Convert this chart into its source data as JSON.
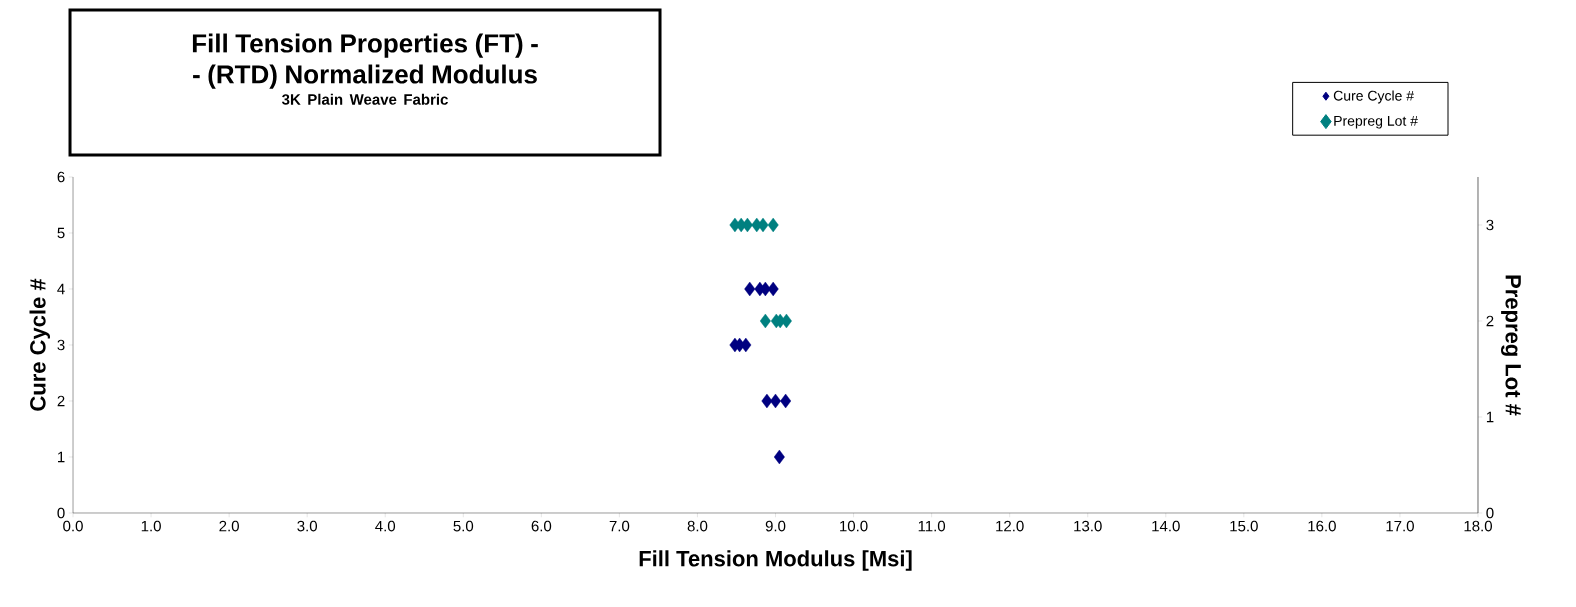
{
  "chart_data": {
    "type": "scatter",
    "title": "Fill Tension Properties (FT) --  (RTD) Normalized Modulus",
    "subtitle": "3K Plain Weave Fabric",
    "xlabel": "Fill Tension  Modulus [Msi]",
    "ylabel": "Cure Cycle #",
    "y2label": "Prepreg Lot #",
    "series": [
      {
        "name": "Cure Cycle #",
        "color": "#000080",
        "x": [
          9.05,
          8.89,
          9.0,
          9.13,
          8.48,
          8.54,
          8.62,
          8.67,
          8.8,
          8.87,
          8.97
        ],
        "values": [
          1,
          2,
          2,
          2,
          3,
          3,
          3,
          4,
          4,
          4,
          4
        ]
      },
      {
        "name": "Prepreg Lot #",
        "color": "#008080",
        "axis": "y2",
        "x": [
          8.87,
          9.01,
          9.06,
          9.14,
          8.48,
          8.56,
          8.64,
          8.76,
          8.84,
          8.97
        ],
        "values": [
          2,
          2,
          2,
          2,
          3,
          3,
          3,
          3,
          3,
          3
        ]
      }
    ],
    "xlim": [
      0,
      18
    ],
    "xticks": [
      {
        "value": 0,
        "label": "0.0"
      },
      {
        "value": 1,
        "label": "1.0"
      },
      {
        "value": 2,
        "label": "2.0"
      },
      {
        "value": 3,
        "label": "3.0"
      },
      {
        "value": 4,
        "label": "4.0"
      },
      {
        "value": 5,
        "label": "5.0"
      },
      {
        "value": 6,
        "label": "6.0"
      },
      {
        "value": 7,
        "label": "7.0"
      },
      {
        "value": 8,
        "label": "8.0"
      },
      {
        "value": 9,
        "label": "9.0"
      },
      {
        "value": 10,
        "label": "10.0"
      },
      {
        "value": 11,
        "label": "11.0"
      },
      {
        "value": 12,
        "label": "12.0"
      },
      {
        "value": 13,
        "label": "13.0"
      },
      {
        "value": 14,
        "label": "14.0"
      },
      {
        "value": 15,
        "label": "15.0"
      },
      {
        "value": 16,
        "label": "16.0"
      },
      {
        "value": 17,
        "label": "17.0"
      },
      {
        "value": 18,
        "label": "18.0"
      }
    ],
    "ylim": [
      0,
      6
    ],
    "yticks": [
      0,
      1,
      2,
      3,
      4,
      5,
      6
    ],
    "y2lim": [
      0,
      3.5
    ],
    "y2ticks": [
      0,
      1,
      2,
      3
    ],
    "marker": "diamond",
    "legend": "top right",
    "grid": false
  }
}
